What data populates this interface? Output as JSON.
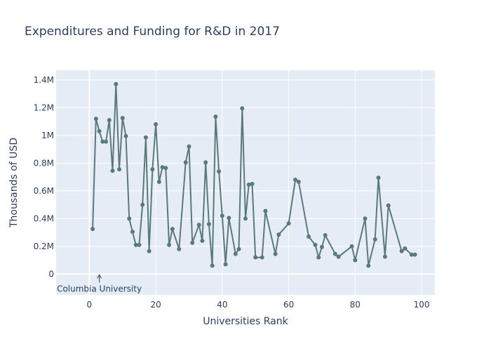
{
  "chart_data": {
    "type": "line",
    "title": "Expenditures and Funding for R&D in 2017",
    "xlabel": "Universities Rank",
    "ylabel": "Thousands of USD",
    "xlim": [
      -10,
      104
    ],
    "ylim": [
      -150000,
      1470000
    ],
    "x_ticks": [
      0,
      20,
      40,
      60,
      80,
      100
    ],
    "x_tick_labels": [
      "0",
      "20",
      "40",
      "60",
      "80",
      "100"
    ],
    "y_ticks": [
      0,
      200000,
      400000,
      600000,
      800000,
      1000000,
      1200000,
      1400000
    ],
    "y_tick_labels": [
      "0",
      "0.2M",
      "0.4M",
      "0.6M",
      "0.8M",
      "1M",
      "1.2M",
      "1.4M"
    ],
    "grid": true,
    "legend": "none",
    "colors": {
      "line": "#5a7a7a",
      "marker": "#5a7a7a",
      "plot_bg": "#e5ecf6",
      "grid": "#ffffff",
      "text": "#2a3f5f"
    },
    "series": [
      {
        "x": [
          1,
          2,
          3,
          4,
          5,
          6,
          7,
          8,
          9,
          10,
          11,
          12,
          13,
          14,
          15,
          16,
          17,
          18,
          19,
          20,
          21,
          22,
          23,
          24,
          25,
          27,
          29,
          30,
          31,
          33,
          34,
          35,
          36,
          37,
          38,
          39,
          40,
          41,
          42,
          44,
          45,
          46,
          47,
          48,
          49,
          50,
          52,
          53,
          56,
          57,
          60,
          62,
          63,
          66,
          68,
          69,
          70,
          71,
          74,
          75,
          79,
          80,
          83,
          84,
          86,
          87,
          89,
          90,
          94,
          95,
          97,
          98
        ],
        "values": [
          325000,
          1120000,
          1030000,
          955000,
          955000,
          1110000,
          745000,
          1370000,
          755000,
          1125000,
          995000,
          400000,
          305000,
          210000,
          210000,
          500000,
          985000,
          165000,
          755000,
          1080000,
          665000,
          770000,
          765000,
          210000,
          325000,
          180000,
          805000,
          920000,
          225000,
          355000,
          240000,
          805000,
          360000,
          60000,
          1135000,
          740000,
          420000,
          70000,
          405000,
          145000,
          180000,
          1195000,
          400000,
          645000,
          650000,
          120000,
          120000,
          455000,
          145000,
          285000,
          365000,
          680000,
          665000,
          270000,
          210000,
          120000,
          195000,
          280000,
          145000,
          125000,
          200000,
          100000,
          400000,
          60000,
          250000,
          695000,
          125000,
          495000,
          165000,
          185000,
          140000,
          140000
        ]
      }
    ],
    "annotations": [
      {
        "text": "Columbia University",
        "x": 3,
        "y": 0,
        "arrow": true
      }
    ]
  }
}
